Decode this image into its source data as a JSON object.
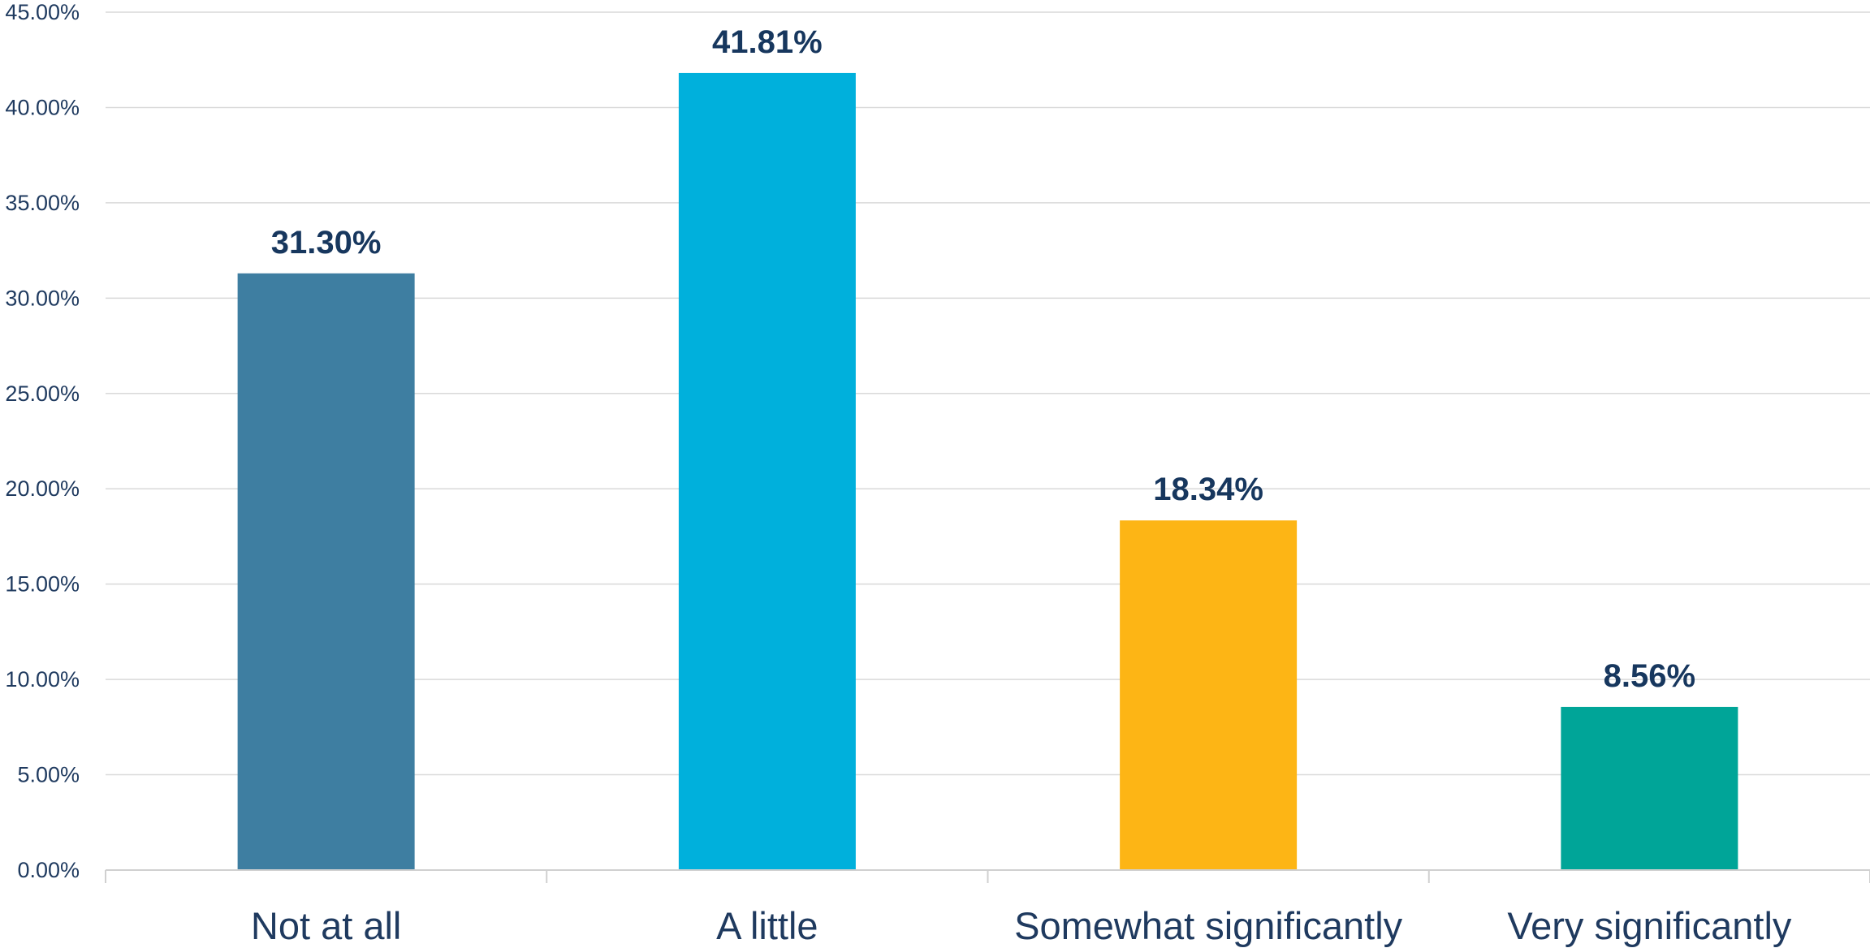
{
  "chart_data": {
    "type": "bar",
    "categories": [
      "Not at all",
      "A little",
      "Somewhat significantly",
      "Very significantly"
    ],
    "values": [
      31.3,
      41.81,
      18.34,
      8.56
    ],
    "data_labels": [
      "31.30%",
      "41.81%",
      "18.34%",
      "8.56%"
    ],
    "bar_colors": [
      "#3e7ea1",
      "#00b0dc",
      "#fdb515",
      "#00a598"
    ],
    "title": "",
    "xlabel": "",
    "ylabel": "",
    "ylim": [
      0,
      45
    ],
    "y_ticks": [
      0,
      5,
      10,
      15,
      20,
      25,
      30,
      35,
      40,
      45
    ],
    "y_tick_labels": [
      "0.00%",
      "5.00%",
      "10.00%",
      "15.00%",
      "20.00%",
      "25.00%",
      "30.00%",
      "35.00%",
      "40.00%",
      "45.00%"
    ],
    "grid": true,
    "legend": "none"
  }
}
